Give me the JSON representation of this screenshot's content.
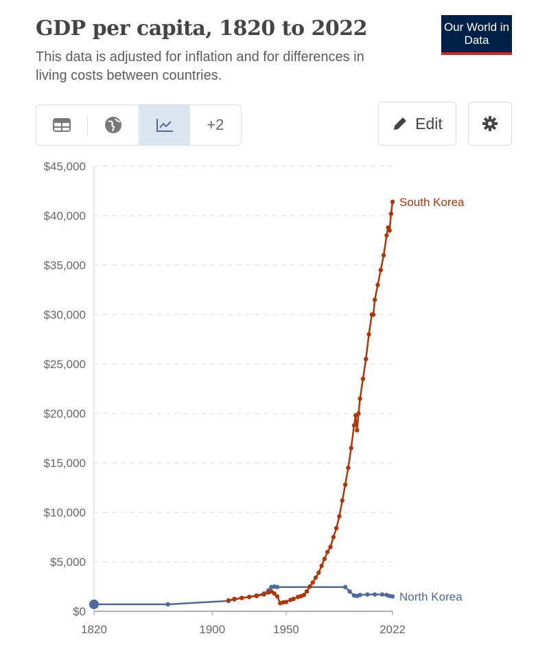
{
  "header": {
    "title": "GDP per capita, 1820 to 2022",
    "subtitle": "This data is adjusted for inflation and for differences in living costs between countries.",
    "logo_text": "Our World in Data"
  },
  "toolbar": {
    "tabs": [
      {
        "icon": "table-icon"
      },
      {
        "icon": "globe-icon"
      },
      {
        "icon": "line-chart-icon",
        "active": true
      },
      {
        "label": "+2"
      }
    ],
    "edit_label": "Edit",
    "settings_icon": "gear-icon"
  },
  "colors": {
    "south_korea": "#b13507",
    "north_korea": "#4c6a9c",
    "logo_bg": "#002147",
    "logo_accent": "#ce261e"
  },
  "chart_data": {
    "type": "line",
    "title": "GDP per capita, 1820 to 2022",
    "xlim": [
      1820,
      2022
    ],
    "ylim": [
      0,
      45000
    ],
    "x_ticks": [
      {
        "v": 1820,
        "label": "1820"
      },
      {
        "v": 1900,
        "label": "1900"
      },
      {
        "v": 1950,
        "label": "1950"
      },
      {
        "v": 2022,
        "label": "2022"
      }
    ],
    "y_ticks": [
      {
        "v": 0,
        "label": "$0"
      },
      {
        "v": 5000,
        "label": "$5,000"
      },
      {
        "v": 10000,
        "label": "$10,000"
      },
      {
        "v": 15000,
        "label": "$15,000"
      },
      {
        "v": 20000,
        "label": "$20,000"
      },
      {
        "v": 25000,
        "label": "$25,000"
      },
      {
        "v": 30000,
        "label": "$30,000"
      },
      {
        "v": 35000,
        "label": "$35,000"
      },
      {
        "v": 40000,
        "label": "$40,000"
      },
      {
        "v": 45000,
        "label": "$45,000"
      }
    ],
    "grid": "horizontal dashed",
    "legend": "line-end labels",
    "series": [
      {
        "name": "South Korea",
        "color": "#b13507",
        "points": [
          [
            1911,
            1100
          ],
          [
            1915,
            1250
          ],
          [
            1920,
            1350
          ],
          [
            1925,
            1450
          ],
          [
            1930,
            1550
          ],
          [
            1935,
            1700
          ],
          [
            1938,
            1900
          ],
          [
            1940,
            2000
          ],
          [
            1942,
            1800
          ],
          [
            1944,
            1500
          ],
          [
            1946,
            820
          ],
          [
            1948,
            900
          ],
          [
            1950,
            940
          ],
          [
            1953,
            1150
          ],
          [
            1955,
            1250
          ],
          [
            1958,
            1450
          ],
          [
            1960,
            1530
          ],
          [
            1962,
            1650
          ],
          [
            1964,
            2000
          ],
          [
            1966,
            2500
          ],
          [
            1968,
            2900
          ],
          [
            1970,
            3400
          ],
          [
            1972,
            3900
          ],
          [
            1974,
            4600
          ],
          [
            1976,
            5300
          ],
          [
            1978,
            6000
          ],
          [
            1980,
            6500
          ],
          [
            1982,
            7500
          ],
          [
            1984,
            8400
          ],
          [
            1986,
            9600
          ],
          [
            1988,
            11200
          ],
          [
            1990,
            12800
          ],
          [
            1992,
            14500
          ],
          [
            1994,
            16500
          ],
          [
            1996,
            18800
          ],
          [
            1997,
            19800
          ],
          [
            1998,
            18300
          ],
          [
            1999,
            20000
          ],
          [
            2000,
            21500
          ],
          [
            2002,
            23500
          ],
          [
            2004,
            25500
          ],
          [
            2006,
            28000
          ],
          [
            2008,
            30000
          ],
          [
            2009,
            30000
          ],
          [
            2010,
            31500
          ],
          [
            2012,
            33000
          ],
          [
            2014,
            34500
          ],
          [
            2016,
            36000
          ],
          [
            2018,
            38000
          ],
          [
            2019,
            38800
          ],
          [
            2020,
            38500
          ],
          [
            2021,
            40200
          ],
          [
            2022,
            41400
          ]
        ]
      },
      {
        "name": "North Korea",
        "color": "#4c6a9c",
        "points": [
          [
            1820,
            700
          ],
          [
            1870,
            700
          ],
          [
            1911,
            1050
          ],
          [
            1915,
            1200
          ],
          [
            1920,
            1350
          ],
          [
            1925,
            1450
          ],
          [
            1930,
            1600
          ],
          [
            1935,
            1800
          ],
          [
            1938,
            2100
          ],
          [
            1940,
            2450
          ],
          [
            1942,
            2500
          ],
          [
            1944,
            2450
          ],
          [
            1990,
            2450
          ],
          [
            1993,
            2000
          ],
          [
            1996,
            1600
          ],
          [
            1998,
            1550
          ],
          [
            2000,
            1650
          ],
          [
            2005,
            1700
          ],
          [
            2010,
            1700
          ],
          [
            2015,
            1700
          ],
          [
            2018,
            1650
          ],
          [
            2020,
            1550
          ],
          [
            2022,
            1500
          ]
        ]
      }
    ]
  }
}
